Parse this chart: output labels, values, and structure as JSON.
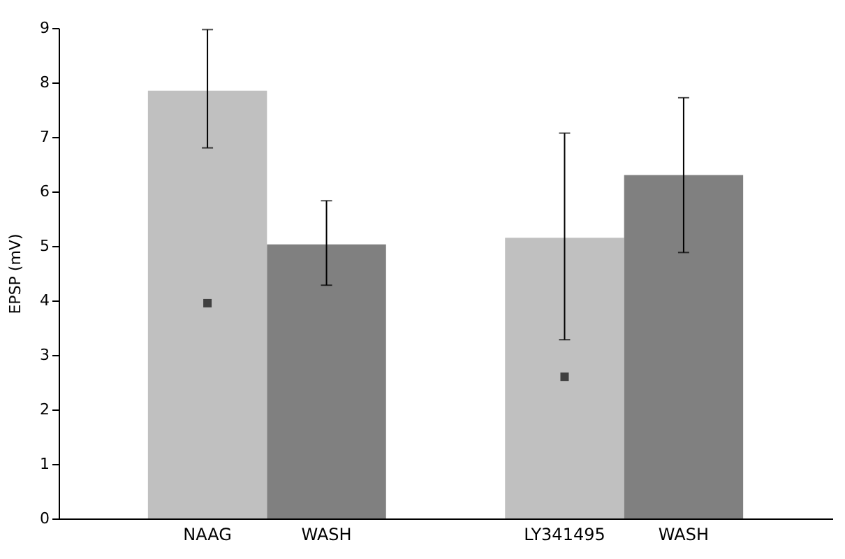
{
  "chart_data": {
    "type": "bar",
    "ylabel": "EPSP (mV)",
    "categories": [
      "NAAG",
      "WASH",
      "LY341495",
      "WASH"
    ],
    "series": [
      {
        "values": [
          7.85,
          5.03,
          5.15,
          6.3
        ],
        "colors": [
          "#c0c0c0",
          "#808080",
          "#c0c0c0",
          "#808080"
        ],
        "errors": [
          [
            6.8,
            8.97
          ],
          [
            4.28,
            5.83
          ],
          [
            3.28,
            7.07
          ],
          [
            4.88,
            7.72
          ]
        ]
      },
      {
        "type": "scatter",
        "x": [
          "NAAG",
          "LY341495"
        ],
        "values": [
          3.95,
          2.6
        ],
        "color": "#404040",
        "marker": "square"
      }
    ],
    "ylim": [
      0,
      9
    ],
    "yticks": [
      0,
      1,
      2,
      3,
      4,
      5,
      6,
      7,
      8,
      9
    ],
    "grid": false
  }
}
